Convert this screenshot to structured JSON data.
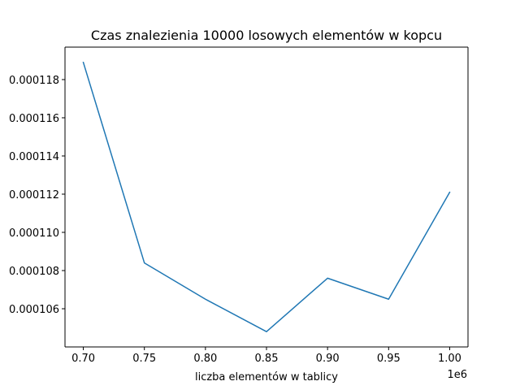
{
  "chart_data": {
    "type": "line",
    "title": "Czas znalezienia 10000 losowych elementów w kopcu",
    "xlabel": "liczba elementów w tablicy",
    "ylabel": "",
    "x_offset_text": "1e6",
    "x": [
      0.7,
      0.75,
      0.8,
      0.85,
      0.9,
      0.95,
      1.0
    ],
    "series": [
      {
        "name": "",
        "color": "#1f77b4",
        "values": [
          0.0001189,
          0.0001084,
          0.0001065,
          0.0001048,
          0.0001076,
          0.0001065,
          0.0001121
        ]
      }
    ],
    "xlim": [
      0.685,
      1.015
    ],
    "ylim": [
      0.000104,
      0.0001197
    ],
    "x_ticks": [
      0.7,
      0.75,
      0.8,
      0.85,
      0.9,
      0.95,
      1.0
    ],
    "x_tick_labels": [
      "0.70",
      "0.75",
      "0.80",
      "0.85",
      "0.90",
      "0.95",
      "1.00"
    ],
    "y_ticks": [
      0.000106,
      0.000108,
      0.00011,
      0.000112,
      0.000114,
      0.000116,
      0.000118
    ],
    "y_tick_labels": [
      "0.000106",
      "0.000108",
      "0.000110",
      "0.000112",
      "0.000114",
      "0.000116",
      "0.000118"
    ],
    "grid": false,
    "legend": "none"
  }
}
